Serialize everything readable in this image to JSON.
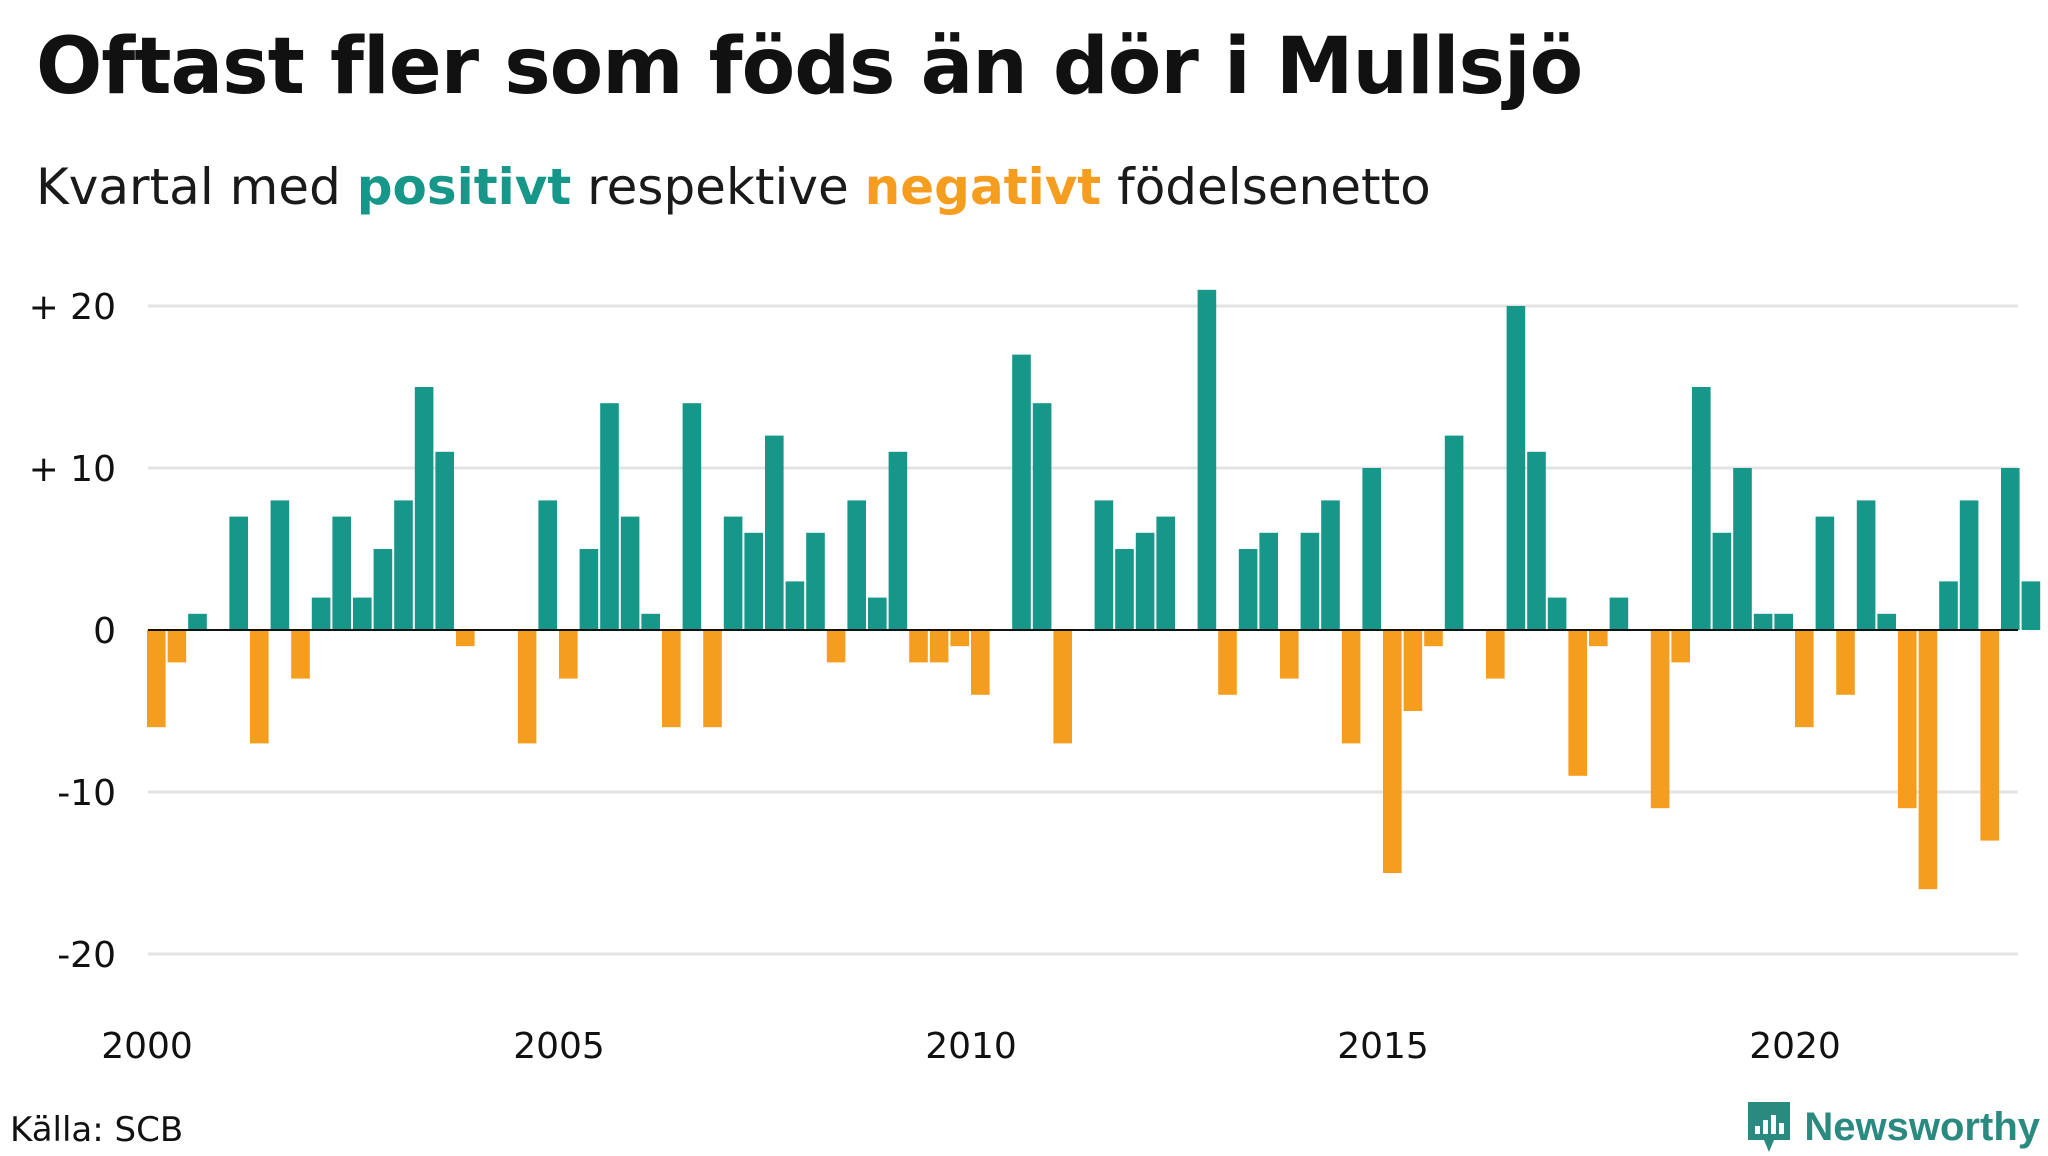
{
  "title": "Oftast fler som föds än dör i Mullsjö",
  "subtitle": {
    "prefix": "Kvartal med ",
    "positive_word": "positivt",
    "middle": " respektive ",
    "negative_word": "negativt",
    "suffix": " födelsenetto"
  },
  "source": "Källa: SCB",
  "logo": {
    "text": "Newsworthy",
    "icon": "newsworthy-logo-icon"
  },
  "colors": {
    "positive": "#17968a",
    "negative": "#f59d1e",
    "grid": "#e3e3e3"
  },
  "chart_data": {
    "type": "bar",
    "x_start": "2000 Q1",
    "frequency": "quarterly",
    "values": [
      -6,
      -2,
      1,
      0,
      7,
      -7,
      8,
      -3,
      2,
      7,
      2,
      5,
      8,
      15,
      11,
      -1,
      0,
      0,
      -7,
      8,
      -3,
      5,
      14,
      7,
      1,
      -6,
      14,
      -6,
      7,
      6,
      12,
      3,
      6,
      -2,
      8,
      2,
      11,
      -2,
      -2,
      -1,
      -4,
      0,
      17,
      14,
      -7,
      0,
      8,
      5,
      6,
      7,
      0,
      21,
      -4,
      5,
      6,
      -3,
      6,
      8,
      -7,
      10,
      -15,
      -5,
      -1,
      12,
      0,
      -3,
      20,
      11,
      2,
      -9,
      -1,
      2,
      0,
      -11,
      -2,
      15,
      6,
      10,
      1,
      1,
      -6,
      7,
      -4,
      8,
      1,
      -11,
      -16,
      3,
      8,
      -13,
      10,
      3
    ],
    "y_ticks": [
      {
        "value": 20,
        "label": "+ 20"
      },
      {
        "value": 10,
        "label": "+ 10"
      },
      {
        "value": 0,
        "label": "0"
      },
      {
        "value": -10,
        "label": "-10"
      },
      {
        "value": -20,
        "label": "-20"
      }
    ],
    "x_ticks": [
      "2000",
      "2005",
      "2010",
      "2015",
      "2020"
    ],
    "ylim": [
      -20,
      21
    ],
    "grid": true,
    "legend": "in-subtitle"
  }
}
